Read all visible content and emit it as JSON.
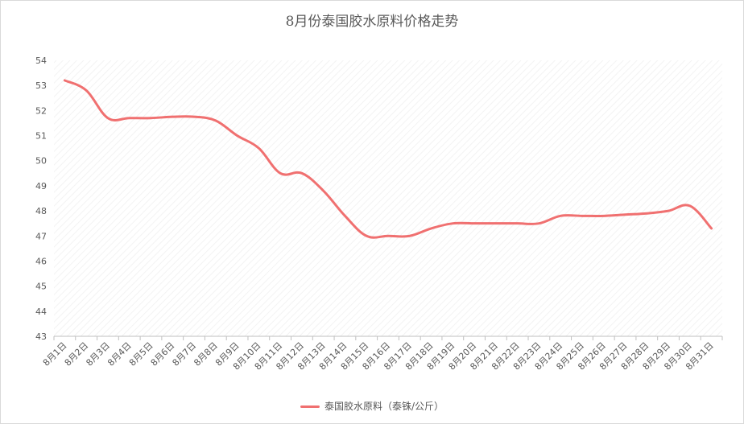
{
  "colors": {
    "line": "#f07070",
    "text": "#595959",
    "axis": "#bfbfbf"
  },
  "chart_data": {
    "type": "line",
    "title": "8月份泰国胶水原料价格走势",
    "xlabel": "",
    "ylabel": "",
    "ylim": [
      43,
      54
    ],
    "y_ticks": [
      "43",
      "44",
      "45",
      "46",
      "47",
      "48",
      "49",
      "50",
      "51",
      "52",
      "53",
      "54"
    ],
    "categories": [
      "8月1日",
      "8月2日",
      "8月3日",
      "8月4日",
      "8月5日",
      "8月6日",
      "8月7日",
      "8月8日",
      "8月9日",
      "8月10日",
      "8月11日",
      "8月12日",
      "8月13日",
      "8月14日",
      "8月15日",
      "8月16日",
      "8月17日",
      "8月18日",
      "8月19日",
      "8月20日",
      "8月21日",
      "8月22日",
      "8月23日",
      "8月24日",
      "8月25日",
      "8月26日",
      "8月27日",
      "8月28日",
      "8月29日",
      "8月30日",
      "8月31日"
    ],
    "series": [
      {
        "name": "泰国胶水原料（泰铢/公斤）",
        "values": [
          53.2,
          52.8,
          51.7,
          51.7,
          51.7,
          51.75,
          51.75,
          51.6,
          51.0,
          50.5,
          49.5,
          49.5,
          48.8,
          47.8,
          47.0,
          47.0,
          47.0,
          47.3,
          47.5,
          47.5,
          47.5,
          47.5,
          47.5,
          47.8,
          47.8,
          47.8,
          47.85,
          47.9,
          48.0,
          48.2,
          47.3
        ]
      }
    ],
    "grid": true,
    "legend_position": "bottom"
  }
}
